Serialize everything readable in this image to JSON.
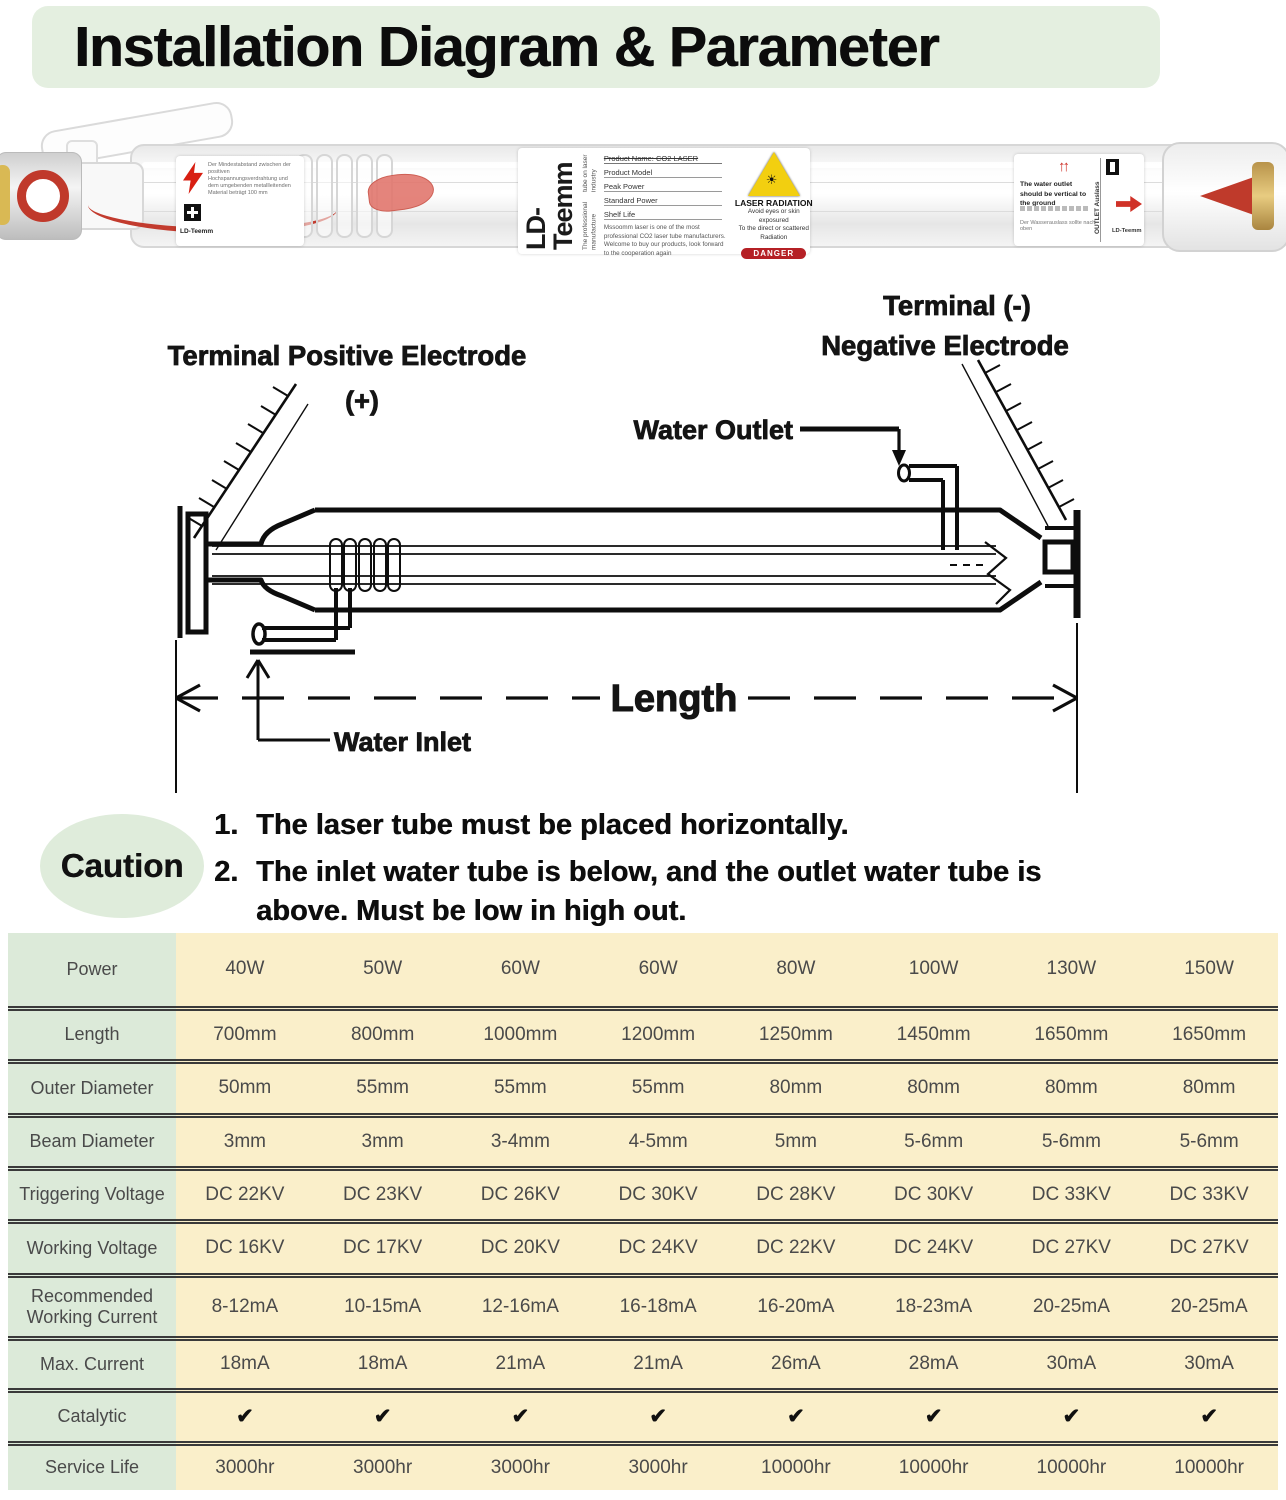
{
  "title": "Installation Diagram & Parameter",
  "colors": {
    "banner_bg": "#e4efe0",
    "table_label_bg": "#dcead9",
    "table_cell_bg": "#faefca",
    "accent_red": "#d03228",
    "warning_yellow": "#f2cf10"
  },
  "photo": {
    "left_label": {
      "brand": "LD-Teemm",
      "fine_print": "Der Mindestabstand zwischen der positiven Hochspannungsverdrahtung und dem umgebenden metallleitenden Material beträgt 100 mm"
    },
    "center_label": {
      "brand_vertical": "LD-Teemm",
      "tagline_line1": "The professional manufacture",
      "tagline_line2": "tube on laser industry",
      "field_product_name": "Product Name:  CO2 LASER",
      "field_product_model": "Product Model",
      "field_peak_power": "Peak Power",
      "field_standard_power": "Standard Power",
      "field_shelf_life": "Shelf Life",
      "description": "Mssoomm laser is one of the most professional CO2 laser tube manufacturers. Welcome to buy our products, look forward to the cooperation again",
      "warning_symbol": "☀",
      "warning_title": "LASER RADIATION",
      "warning_line1": "Avoid eyes or skin exposured",
      "warning_line2": "To the direct or scattered",
      "warning_line3": "Radiation",
      "danger_label": "DANGER"
    },
    "right_label": {
      "arrows": "↑↑",
      "text": "The water outlet should be vertical to the ground",
      "fine_print": "Der Wasserauslass sollte nach oben",
      "vertical_text": "OUTLET Auslass",
      "brand": "LD-Teemm"
    }
  },
  "diagram": {
    "terminal_positive_line1": "Terminal Positive Electrode",
    "terminal_positive_line2": "(+)",
    "terminal_negative_line1": "Terminal  (-)",
    "terminal_negative_line2": "Negative Electrode",
    "water_outlet_label": "Water Outlet",
    "water_inlet_label": "Water Inlet",
    "length_label": "Length"
  },
  "caution": {
    "badge": "Caution",
    "item1_num": "1.",
    "item1": "The laser tube must be placed horizontally.",
    "item2_num": "2.",
    "item2": "The inlet water tube is below, and the outlet water tube is above. Must be low in high out."
  },
  "table": {
    "rows": [
      {
        "label": "Power",
        "values": [
          "40W",
          "50W",
          "60W",
          "60W",
          "80W",
          "100W",
          "130W",
          "150W"
        ]
      },
      {
        "label": "Length",
        "values": [
          "700mm",
          "800mm",
          "1000mm",
          "1200mm",
          "1250mm",
          "1450mm",
          "1650mm",
          "1650mm"
        ]
      },
      {
        "label": "Outer Diameter",
        "values": [
          "50mm",
          "55mm",
          "55mm",
          "55mm",
          "80mm",
          "80mm",
          "80mm",
          "80mm"
        ]
      },
      {
        "label": "Beam Diameter",
        "values": [
          "3mm",
          "3mm",
          "3-4mm",
          "4-5mm",
          "5mm",
          "5-6mm",
          "5-6mm",
          "5-6mm"
        ]
      },
      {
        "label": "Triggering Voltage",
        "values": [
          "DC 22KV",
          "DC 23KV",
          "DC 26KV",
          "DC 30KV",
          "DC 28KV",
          "DC 30KV",
          "DC 33KV",
          "DC 33KV"
        ]
      },
      {
        "label": "Working Voltage",
        "values": [
          "DC 16KV",
          "DC 17KV",
          "DC 20KV",
          "DC 24KV",
          "DC 22KV",
          "DC 24KV",
          "DC 27KV",
          "DC 27KV"
        ]
      },
      {
        "label": "Recommended Working Current",
        "values": [
          "8-12mA",
          "10-15mA",
          "12-16mA",
          "16-18mA",
          "16-20mA",
          "18-23mA",
          "20-25mA",
          "20-25mA"
        ]
      },
      {
        "label": "Max. Current",
        "values": [
          "18mA",
          "18mA",
          "21mA",
          "21mA",
          "26mA",
          "28mA",
          "30mA",
          "30mA"
        ]
      },
      {
        "label": "Catalytic",
        "values": [
          "✔",
          "✔",
          "✔",
          "✔",
          "✔",
          "✔",
          "✔",
          "✔"
        ]
      },
      {
        "label": "Service Life",
        "values": [
          "3000hr",
          "3000hr",
          "3000hr",
          "3000hr",
          "10000hr",
          "10000hr",
          "10000hr",
          "10000hr"
        ]
      }
    ]
  }
}
